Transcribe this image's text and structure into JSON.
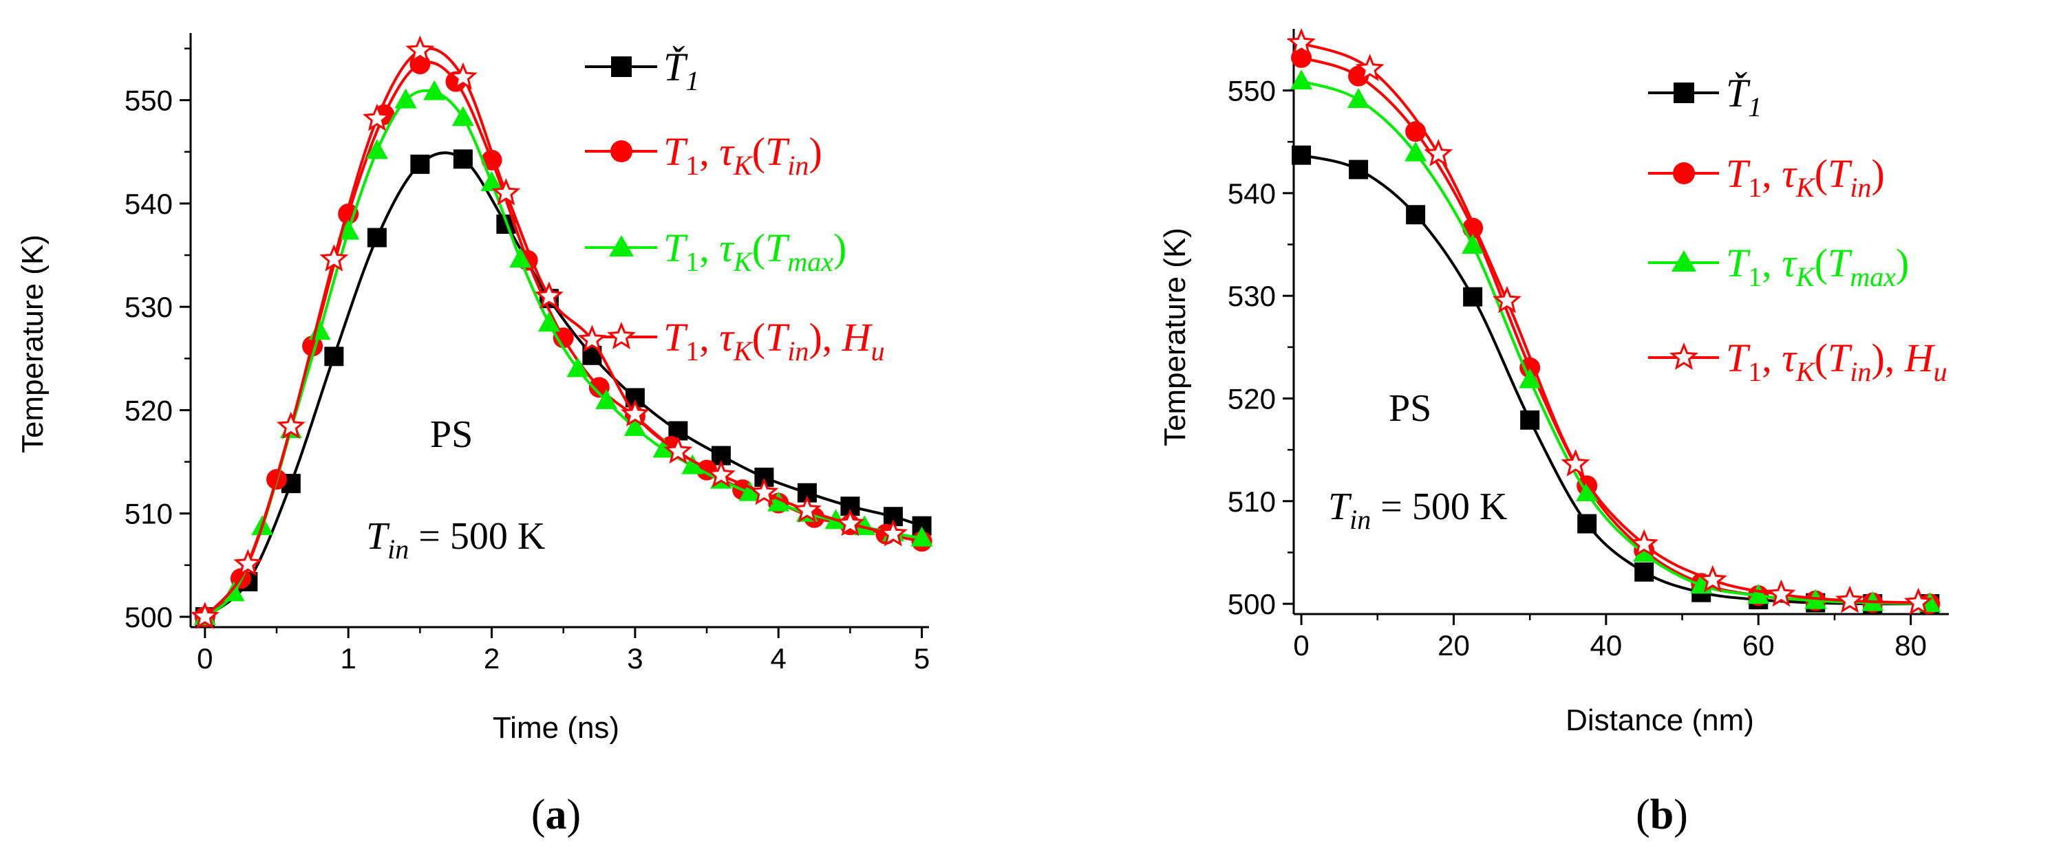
{
  "colors": {
    "T1_check": "#000000",
    "T1_tau_in": "#ff0000",
    "T1_tau_max": "#00ee00",
    "T1_tau_in_Hu": "#ff0000"
  },
  "legend_parts": {
    "s1": {
      "main": "Ť",
      "sub": "1"
    },
    "s2": {
      "T": "T",
      "one": "1",
      "sep": ", ",
      "tau": "τ",
      "K": "K",
      "lp": "(",
      "arg": "T",
      "argsub": "in",
      "rp": ")"
    },
    "s3": {
      "T": "T",
      "one": "1",
      "sep": ", ",
      "tau": "τ",
      "K": "K",
      "lp": "(",
      "arg": "T",
      "argsub": "max",
      "rp": ")"
    },
    "s4": {
      "T": "T",
      "one": "1",
      "sep": ", ",
      "tau": "τ",
      "K": "K",
      "lp": "(",
      "arg": "T",
      "argsub": "in",
      "rp": ")",
      "sep2": ", ",
      "H": "H",
      "Hsub": "u"
    }
  },
  "chart_data": [
    {
      "type": "line",
      "panel_label": "(a)",
      "panel_bold": "a",
      "xlabel": "Time (ns)",
      "ylabel": "Temperature (K)",
      "xlim": [
        -0.1,
        5.05
      ],
      "ylim": [
        499,
        556.5
      ],
      "xticks": [
        0,
        1,
        2,
        3,
        4,
        5
      ],
      "yticks": [
        500,
        510,
        520,
        530,
        540,
        550
      ],
      "annotation": {
        "material": "PS",
        "tin_T": "T",
        "tin_sub": "in",
        "tin_rest": " = 500 K"
      },
      "legend_position": "top-right",
      "series": [
        {
          "name": "Ť1",
          "color": "#000000",
          "marker": "square",
          "x": [
            0,
            0.3,
            0.6,
            0.9,
            1.2,
            1.5,
            1.8,
            2.1,
            2.4,
            2.7,
            3.0,
            3.3,
            3.6,
            3.9,
            4.2,
            4.5,
            4.8,
            5.0
          ],
          "y": [
            500,
            503.4,
            512.9,
            525.2,
            536.7,
            543.8,
            544.3,
            538.0,
            530.8,
            525.3,
            521.2,
            518.0,
            515.6,
            513.5,
            512.0,
            510.7,
            509.7,
            508.8
          ]
        },
        {
          "name": "T1, τK(Tin)",
          "color": "#ff0000",
          "marker": "circle",
          "x": [
            0,
            0.25,
            0.5,
            0.75,
            1.0,
            1.25,
            1.5,
            1.75,
            2.0,
            2.25,
            2.5,
            2.75,
            3.0,
            3.25,
            3.5,
            3.75,
            4.0,
            4.25,
            4.5,
            4.75,
            5.0
          ],
          "y": [
            500,
            503.7,
            513.3,
            526.2,
            539.0,
            548.6,
            553.5,
            551.8,
            544.2,
            534.5,
            527.0,
            522.2,
            519.4,
            516.5,
            514.2,
            512.3,
            511.0,
            509.6,
            508.9,
            508.0,
            507.3
          ]
        },
        {
          "name": "T1, τK(Tmax)",
          "color": "#00ee00",
          "marker": "triangle",
          "x": [
            0,
            0.2,
            0.4,
            0.6,
            0.8,
            1.0,
            1.2,
            1.4,
            1.6,
            1.8,
            2.0,
            2.2,
            2.4,
            2.6,
            2.8,
            3.0,
            3.2,
            3.4,
            3.6,
            3.8,
            4.0,
            4.2,
            4.4,
            4.6,
            4.8,
            5.0
          ],
          "y": [
            500,
            502.3,
            508.7,
            518.1,
            527.6,
            537.3,
            545.1,
            550.0,
            550.8,
            548.3,
            542.0,
            534.6,
            528.4,
            524.0,
            520.9,
            518.3,
            516.2,
            514.6,
            513.2,
            512.0,
            511.0,
            510.0,
            509.3,
            508.7,
            508.1,
            507.6
          ]
        },
        {
          "name": "T1, τK(Tin), Hu",
          "color": "#ff0000",
          "marker": "star",
          "x": [
            0,
            0.3,
            0.6,
            0.9,
            1.2,
            1.5,
            1.8,
            2.1,
            2.4,
            2.7,
            3.0,
            3.3,
            3.6,
            3.9,
            4.2,
            4.5,
            4.8
          ],
          "y": [
            500,
            505.1,
            518.4,
            534.6,
            548.2,
            554.8,
            552.2,
            541.0,
            531.0,
            526.8,
            519.6,
            516.0,
            513.7,
            512.0,
            510.3,
            509.0,
            508.0
          ]
        }
      ]
    },
    {
      "type": "line",
      "panel_label": "(b)",
      "panel_bold": "b",
      "xlabel": "Distance (nm)",
      "ylabel": "Temperature (K)",
      "xlim": [
        -1,
        85
      ],
      "ylim": [
        499,
        556
      ],
      "xticks": [
        0,
        20,
        40,
        60,
        80
      ],
      "yticks": [
        500,
        510,
        520,
        530,
        540,
        550
      ],
      "annotation": {
        "material": "PS",
        "tin_T": "T",
        "tin_sub": "in",
        "tin_rest": " = 500 K"
      },
      "legend_position": "top-right",
      "series": [
        {
          "name": "Ť1",
          "color": "#000000",
          "marker": "square",
          "x": [
            0,
            7.5,
            15,
            22.5,
            30,
            37.5,
            45,
            52.5,
            60,
            67.5,
            75,
            82.5
          ],
          "y": [
            543.7,
            542.3,
            537.9,
            529.9,
            517.9,
            507.8,
            503.1,
            501.1,
            500.4,
            500.1,
            500.0,
            500.0
          ]
        },
        {
          "name": "T1, τK(Tin)",
          "color": "#ff0000",
          "marker": "circle",
          "x": [
            0,
            7.5,
            15,
            22.5,
            30,
            37.5,
            45,
            52.5,
            60,
            67.5,
            75,
            82.5
          ],
          "y": [
            553.2,
            551.4,
            546.0,
            536.6,
            523.0,
            511.5,
            505.2,
            502.0,
            500.8,
            500.3,
            500.1,
            500.0
          ]
        },
        {
          "name": "T1, τK(Tmax)",
          "color": "#00ee00",
          "marker": "triangle",
          "x": [
            0,
            7.5,
            15,
            22.5,
            30,
            37.5,
            45,
            52.5,
            60,
            67.5,
            75,
            82.5
          ],
          "y": [
            550.9,
            549.1,
            543.9,
            534.9,
            521.8,
            510.8,
            504.9,
            501.8,
            500.8,
            500.3,
            500.1,
            500.0
          ]
        },
        {
          "name": "T1, τK(Tin), Hu",
          "color": "#ff0000",
          "marker": "star",
          "x": [
            0,
            9,
            18,
            27,
            36,
            45,
            54,
            63,
            72,
            81
          ],
          "y": [
            554.6,
            552.1,
            543.8,
            529.5,
            513.6,
            505.8,
            502.3,
            500.9,
            500.3,
            500.1
          ]
        }
      ]
    }
  ]
}
